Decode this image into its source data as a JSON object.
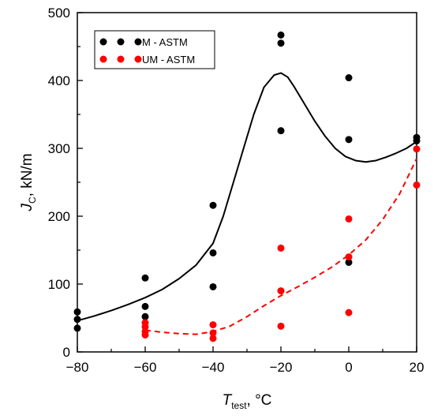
{
  "chart_data": {
    "type": "scatter",
    "xlabel": {
      "main": "T",
      "sub": "test",
      "unit": ", °C"
    },
    "ylabel": {
      "main": "J",
      "sub": "C",
      "unit": ", kN/m"
    },
    "xlim": [
      -80,
      20
    ],
    "ylim": [
      0,
      500
    ],
    "xticks": [
      -80,
      -60,
      -40,
      -20,
      0,
      20
    ],
    "yticks": [
      0,
      100,
      200,
      300,
      400,
      500
    ],
    "grid": false,
    "legend": {
      "position": "top-left"
    },
    "series": [
      {
        "name": "M - ASTM",
        "color": "#000000",
        "fit_style": "solid",
        "points": [
          [
            -80,
            59
          ],
          [
            -80,
            48
          ],
          [
            -80,
            35
          ],
          [
            -60,
            109
          ],
          [
            -60,
            67
          ],
          [
            -60,
            52
          ],
          [
            -40,
            216
          ],
          [
            -40,
            146
          ],
          [
            -40,
            96
          ],
          [
            -20,
            467
          ],
          [
            -20,
            455
          ],
          [
            -20,
            326
          ],
          [
            0,
            404
          ],
          [
            0,
            313
          ],
          [
            0,
            132
          ],
          [
            20,
            316
          ],
          [
            20,
            311
          ]
        ],
        "fit": [
          [
            -80,
            46
          ],
          [
            -75,
            53
          ],
          [
            -70,
            61
          ],
          [
            -65,
            70
          ],
          [
            -60,
            80
          ],
          [
            -55,
            92
          ],
          [
            -50,
            108
          ],
          [
            -45,
            128
          ],
          [
            -40,
            160
          ],
          [
            -37,
            200
          ],
          [
            -34,
            250
          ],
          [
            -31,
            300
          ],
          [
            -28,
            350
          ],
          [
            -25,
            390
          ],
          [
            -22,
            408
          ],
          [
            -20,
            411
          ],
          [
            -18,
            405
          ],
          [
            -16,
            390
          ],
          [
            -13,
            365
          ],
          [
            -10,
            340
          ],
          [
            -7,
            318
          ],
          [
            -4,
            300
          ],
          [
            -1,
            288
          ],
          [
            2,
            282
          ],
          [
            5,
            280
          ],
          [
            8,
            282
          ],
          [
            11,
            287
          ],
          [
            14,
            293
          ],
          [
            17,
            300
          ],
          [
            20,
            310
          ]
        ]
      },
      {
        "name": "UM - ASTM",
        "color": "#ff0000",
        "fit_style": "dashed",
        "points": [
          [
            -60,
            43
          ],
          [
            -60,
            37
          ],
          [
            -60,
            30
          ],
          [
            -60,
            25
          ],
          [
            -40,
            40
          ],
          [
            -40,
            28
          ],
          [
            -40,
            20
          ],
          [
            -20,
            153
          ],
          [
            -20,
            90
          ],
          [
            -20,
            38
          ],
          [
            0,
            196
          ],
          [
            0,
            140
          ],
          [
            0,
            58
          ],
          [
            20,
            299
          ],
          [
            20,
            246
          ]
        ],
        "fit": [
          [
            -60,
            32
          ],
          [
            -55,
            29
          ],
          [
            -50,
            27
          ],
          [
            -45,
            26
          ],
          [
            -40,
            30
          ],
          [
            -35,
            38
          ],
          [
            -30,
            52
          ],
          [
            -25,
            68
          ],
          [
            -20,
            83
          ],
          [
            -15,
            96
          ],
          [
            -10,
            110
          ],
          [
            -5,
            125
          ],
          [
            0,
            143
          ],
          [
            5,
            165
          ],
          [
            10,
            195
          ],
          [
            15,
            233
          ],
          [
            20,
            285
          ]
        ]
      }
    ]
  }
}
